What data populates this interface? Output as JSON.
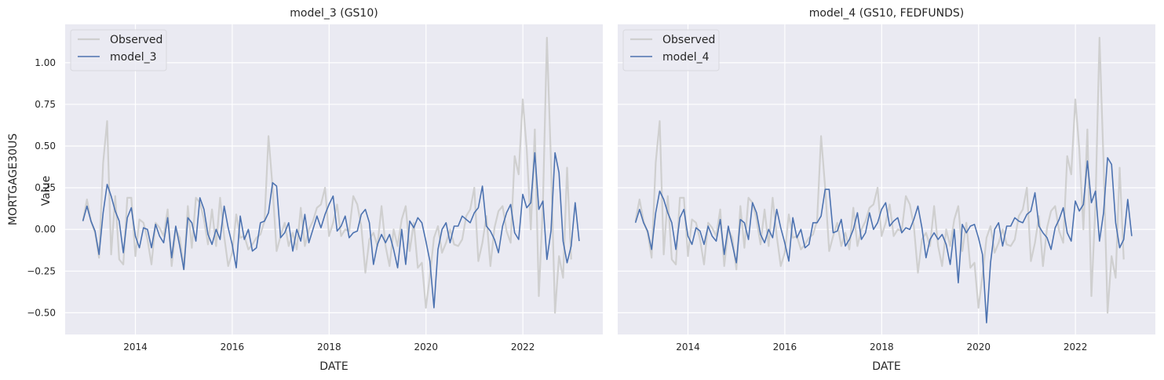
{
  "chart_data": {
    "type": "line",
    "xlabel": "DATE",
    "ylabel": "MORTGAGE30US",
    "ylabel_secondary": "Value",
    "shared_y": true,
    "ylim": [
      -0.63,
      1.23
    ],
    "xlim": [
      2012.55,
      2023.65
    ],
    "x_ticks": [
      2014,
      2016,
      2018,
      2020,
      2022
    ],
    "y_ticks": [
      -0.5,
      -0.25,
      0.0,
      0.25,
      0.5,
      0.75,
      1.0
    ],
    "y_tick_labels": [
      "−0.50",
      "−0.25",
      "0.00",
      "0.25",
      "0.50",
      "0.75",
      "1.00"
    ],
    "grid": true,
    "legend_position": "upper-left",
    "colors": {
      "observed": "#cfcfcf",
      "model": "#4c72b0",
      "axes_bg": "#eaeaf2",
      "grid": "#ffffff"
    },
    "panels": [
      {
        "title": "model_3 (GS10)",
        "series": [
          {
            "name": "Observed",
            "start": 2012.917,
            "step": 0.0833,
            "values": [
              0.05,
              0.18,
              0.05,
              -0.02,
              -0.17,
              0.4,
              0.65,
              -0.15,
              0.2,
              -0.18,
              -0.21,
              0.19,
              0.19,
              -0.16,
              0.06,
              0.04,
              -0.06,
              -0.21,
              0.04,
              0.01,
              -0.04,
              0.12,
              -0.22,
              0.0,
              -0.05,
              -0.24,
              0.14,
              -0.11,
              0.19,
              0.16,
              0.06,
              -0.09,
              0.12,
              -0.1,
              0.19,
              -0.04,
              -0.22,
              -0.14,
              0.09,
              -0.05,
              -0.04,
              -0.12,
              -0.09,
              -0.05,
              -0.03,
              0.05,
              0.56,
              0.25,
              -0.13,
              -0.04,
              0.04,
              -0.1,
              -0.02,
              -0.12,
              0.13,
              -0.1,
              0.0,
              0.05,
              0.13,
              0.15,
              0.25,
              -0.04,
              0.04,
              0.15,
              -0.04,
              0.0,
              -0.01,
              0.2,
              0.15,
              0.02,
              -0.26,
              -0.06,
              -0.02,
              -0.1,
              0.14,
              -0.1,
              -0.22,
              0.0,
              -0.1,
              0.06,
              0.14,
              -0.13,
              0.04,
              -0.23,
              -0.2,
              -0.47,
              -0.28,
              -0.05,
              0.02,
              -0.14,
              -0.08,
              0.0,
              -0.09,
              -0.1,
              -0.06,
              0.08,
              0.12,
              0.25,
              -0.19,
              -0.08,
              0.08,
              -0.22,
              0.01,
              0.11,
              0.14,
              -0.01,
              -0.08,
              0.44,
              0.33,
              0.78,
              0.48,
              0.0,
              0.6,
              -0.4,
              0.15,
              1.15,
              0.4,
              -0.5,
              -0.16,
              -0.29,
              0.37,
              -0.18
            ]
          },
          {
            "name": "model_3",
            "start": 2012.917,
            "step": 0.0833,
            "values": [
              0.05,
              0.14,
              0.05,
              -0.01,
              -0.15,
              0.1,
              0.27,
              0.2,
              0.11,
              0.05,
              -0.14,
              0.07,
              0.13,
              -0.04,
              -0.11,
              0.01,
              0.0,
              -0.11,
              0.03,
              -0.04,
              -0.08,
              0.07,
              -0.17,
              0.02,
              -0.1,
              -0.24,
              0.07,
              0.04,
              -0.07,
              0.19,
              0.12,
              -0.03,
              -0.09,
              0.0,
              -0.06,
              0.14,
              0.01,
              -0.09,
              -0.23,
              0.08,
              -0.06,
              0.0,
              -0.13,
              -0.11,
              0.04,
              0.05,
              0.1,
              0.28,
              0.26,
              -0.05,
              -0.02,
              0.04,
              -0.13,
              0.0,
              -0.07,
              0.09,
              -0.08,
              0.0,
              0.08,
              0.01,
              0.09,
              0.15,
              0.2,
              -0.01,
              0.02,
              0.08,
              -0.05,
              -0.02,
              -0.01,
              0.09,
              0.12,
              0.04,
              -0.21,
              -0.09,
              -0.03,
              -0.08,
              -0.03,
              -0.12,
              -0.23,
              0.0,
              -0.21,
              0.05,
              0.01,
              0.07,
              0.04,
              -0.07,
              -0.19,
              -0.47,
              -0.12,
              0.0,
              0.04,
              -0.08,
              0.02,
              0.02,
              0.08,
              0.06,
              0.04,
              0.1,
              0.13,
              0.26,
              0.02,
              -0.01,
              -0.06,
              -0.14,
              0.02,
              0.1,
              0.15,
              -0.02,
              -0.06,
              0.21,
              0.13,
              0.16,
              0.46,
              0.12,
              0.17,
              -0.18,
              -0.01,
              0.46,
              0.34,
              -0.07,
              -0.2,
              -0.1,
              0.16,
              -0.07
            ]
          }
        ]
      },
      {
        "title": "model_4 (GS10, FEDFUNDS)",
        "series": [
          {
            "name": "Observed",
            "start": 2012.917,
            "step": 0.0833,
            "values": [
              0.05,
              0.18,
              0.05,
              -0.02,
              -0.17,
              0.4,
              0.65,
              -0.15,
              0.2,
              -0.18,
              -0.21,
              0.19,
              0.19,
              -0.16,
              0.06,
              0.04,
              -0.06,
              -0.21,
              0.04,
              0.01,
              -0.04,
              0.12,
              -0.22,
              0.0,
              -0.05,
              -0.24,
              0.14,
              -0.11,
              0.19,
              0.16,
              0.06,
              -0.09,
              0.12,
              -0.1,
              0.19,
              -0.04,
              -0.22,
              -0.14,
              0.09,
              -0.05,
              -0.04,
              -0.12,
              -0.09,
              -0.05,
              -0.03,
              0.05,
              0.56,
              0.25,
              -0.13,
              -0.04,
              0.04,
              -0.1,
              -0.02,
              -0.12,
              0.13,
              -0.1,
              0.0,
              0.05,
              0.13,
              0.15,
              0.25,
              -0.04,
              0.04,
              0.15,
              -0.04,
              0.0,
              -0.01,
              0.2,
              0.15,
              0.02,
              -0.26,
              -0.06,
              -0.02,
              -0.1,
              0.14,
              -0.1,
              -0.22,
              0.0,
              -0.1,
              0.06,
              0.14,
              -0.13,
              0.04,
              -0.23,
              -0.2,
              -0.47,
              -0.28,
              -0.05,
              0.02,
              -0.14,
              -0.08,
              0.0,
              -0.09,
              -0.1,
              -0.06,
              0.08,
              0.12,
              0.25,
              -0.19,
              -0.08,
              0.08,
              -0.22,
              0.01,
              0.11,
              0.14,
              -0.01,
              -0.08,
              0.44,
              0.33,
              0.78,
              0.48,
              0.0,
              0.6,
              -0.4,
              0.15,
              1.15,
              0.4,
              -0.5,
              -0.16,
              -0.29,
              0.37,
              -0.18
            ]
          },
          {
            "name": "model_4",
            "start": 2012.917,
            "step": 0.0833,
            "values": [
              0.04,
              0.12,
              0.04,
              -0.01,
              -0.12,
              0.1,
              0.23,
              0.18,
              0.1,
              0.04,
              -0.12,
              0.07,
              0.12,
              -0.04,
              -0.09,
              0.01,
              -0.01,
              -0.09,
              0.02,
              -0.04,
              -0.07,
              0.06,
              -0.15,
              0.02,
              -0.09,
              -0.2,
              0.06,
              0.04,
              -0.06,
              0.16,
              0.1,
              -0.03,
              -0.08,
              0.0,
              -0.05,
              0.12,
              0.01,
              -0.08,
              -0.19,
              0.07,
              -0.05,
              0.0,
              -0.11,
              -0.09,
              0.04,
              0.04,
              0.08,
              0.24,
              0.24,
              -0.02,
              -0.01,
              0.06,
              -0.1,
              -0.06,
              0.0,
              0.1,
              -0.06,
              -0.02,
              0.1,
              0.0,
              0.04,
              0.12,
              0.16,
              0.02,
              0.05,
              0.07,
              -0.02,
              0.01,
              0.0,
              0.06,
              0.14,
              0.01,
              -0.17,
              -0.06,
              -0.02,
              -0.06,
              -0.03,
              -0.09,
              -0.21,
              0.0,
              -0.32,
              0.03,
              -0.02,
              0.02,
              0.03,
              -0.05,
              -0.15,
              -0.56,
              -0.2,
              0.0,
              0.04,
              -0.1,
              0.02,
              0.02,
              0.07,
              0.05,
              0.04,
              0.09,
              0.11,
              0.22,
              0.02,
              -0.02,
              -0.05,
              -0.12,
              0.01,
              0.06,
              0.13,
              -0.02,
              -0.07,
              0.17,
              0.11,
              0.15,
              0.41,
              0.16,
              0.23,
              -0.07,
              0.1,
              0.43,
              0.39,
              0.04,
              -0.11,
              -0.06,
              0.18,
              -0.04
            ]
          }
        ]
      }
    ]
  }
}
